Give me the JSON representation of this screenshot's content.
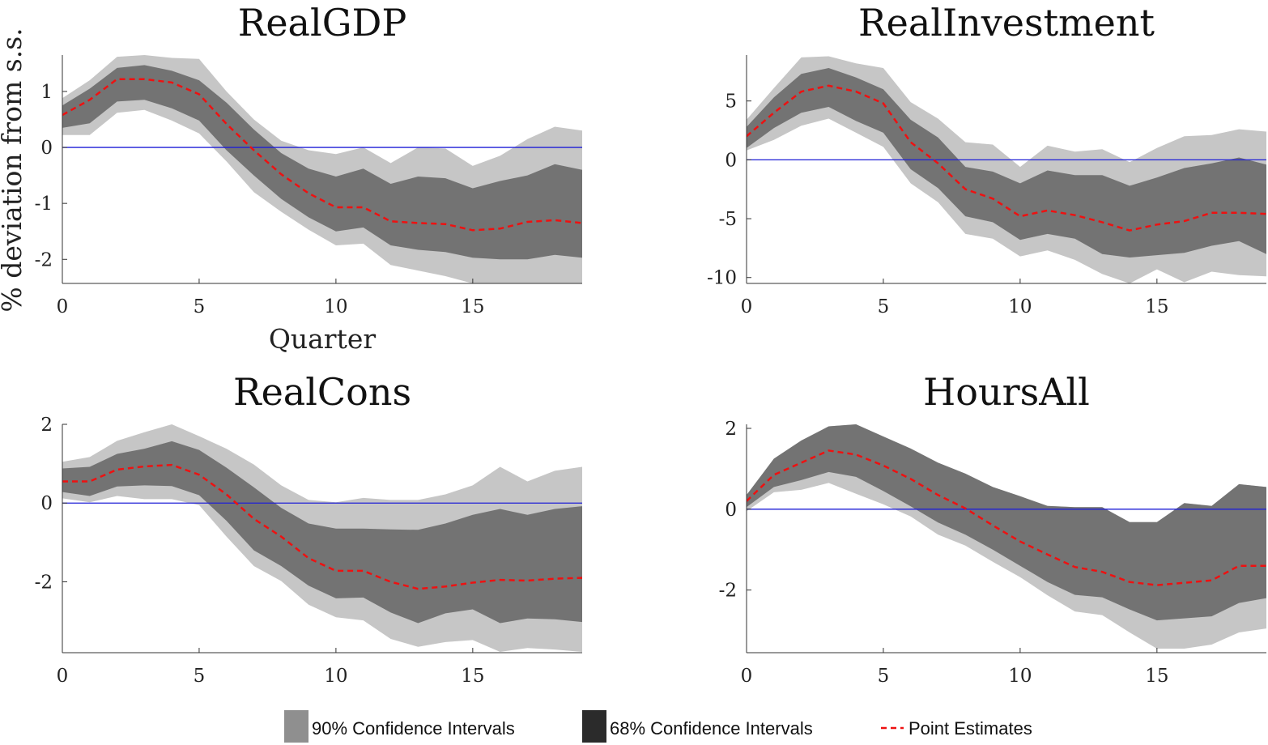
{
  "figure": {
    "ylabel": "% deviation from s.s.",
    "xlabel": "Quarter"
  },
  "colors": {
    "band90": "#c6c6c6",
    "band68": "#737373",
    "point": "#ee1111",
    "zero_line": "#1f1fd6",
    "legend90": "#8f8f8f",
    "legend68": "#2b2b2b"
  },
  "legend": {
    "placement": "bottom-center",
    "items": [
      {
        "label": "90% Confidence Intervals",
        "kind": "band90"
      },
      {
        "label": "68% Confidence Intervals",
        "kind": "band68"
      },
      {
        "label": "Point Estimates",
        "kind": "point"
      }
    ]
  },
  "chart_data": [
    {
      "type": "area",
      "title": "RealGDP",
      "xlabel": "Quarter",
      "ylabel": "% deviation from s.s.",
      "x": [
        0,
        1,
        2,
        3,
        4,
        5,
        6,
        7,
        8,
        9,
        10,
        11,
        12,
        13,
        14,
        15,
        16,
        17,
        18,
        19
      ],
      "xlim": [
        0,
        19
      ],
      "ylim": [
        -2.43,
        1.65
      ],
      "xticks": [
        0,
        5,
        10,
        15
      ],
      "yticks": [
        -2,
        -1,
        0,
        1
      ],
      "zero_line": 0,
      "series": [
        {
          "name": "Point Estimates",
          "values": [
            0.58,
            0.85,
            1.22,
            1.22,
            1.16,
            0.95,
            0.42,
            -0.05,
            -0.48,
            -0.82,
            -1.07,
            -1.07,
            -1.32,
            -1.35,
            -1.37,
            -1.48,
            -1.45,
            -1.33,
            -1.3,
            -1.35
          ]
        },
        {
          "name": "68% Confidence Intervals",
          "lower": [
            0.35,
            0.43,
            0.82,
            0.85,
            0.7,
            0.48,
            -0.05,
            -0.5,
            -0.92,
            -1.25,
            -1.5,
            -1.43,
            -1.75,
            -1.83,
            -1.87,
            -1.97,
            -2.0,
            -2.0,
            -1.92,
            -1.97
          ],
          "upper": [
            0.75,
            1.05,
            1.42,
            1.47,
            1.37,
            1.2,
            0.8,
            0.32,
            -0.1,
            -0.38,
            -0.52,
            -0.38,
            -0.65,
            -0.52,
            -0.55,
            -0.73,
            -0.6,
            -0.5,
            -0.3,
            -0.4
          ]
        },
        {
          "name": "90% Confidence Intervals",
          "lower": [
            0.22,
            0.22,
            0.62,
            0.67,
            0.48,
            0.25,
            -0.25,
            -0.8,
            -1.15,
            -1.47,
            -1.75,
            -1.72,
            -2.1,
            -2.2,
            -2.3,
            -2.43,
            -2.43,
            -2.43,
            -2.43,
            -2.43
          ],
          "upper": [
            0.88,
            1.2,
            1.62,
            1.65,
            1.6,
            1.58,
            1.0,
            0.5,
            0.12,
            -0.05,
            -0.12,
            0.0,
            -0.28,
            0.0,
            -0.02,
            -0.33,
            -0.15,
            0.15,
            0.37,
            0.3
          ]
        }
      ]
    },
    {
      "type": "area",
      "title": "RealInvestment",
      "x": [
        0,
        1,
        2,
        3,
        4,
        5,
        6,
        7,
        8,
        9,
        10,
        11,
        12,
        13,
        14,
        15,
        16,
        17,
        18,
        19
      ],
      "xlim": [
        0,
        19
      ],
      "ylim": [
        -10.5,
        8.9
      ],
      "xticks": [
        0,
        5,
        10,
        15
      ],
      "yticks": [
        -10,
        -5,
        0,
        5
      ],
      "zero_line": 0,
      "series": [
        {
          "name": "Point Estimates",
          "values": [
            2.0,
            4.0,
            5.8,
            6.3,
            5.8,
            4.8,
            1.5,
            -0.3,
            -2.5,
            -3.3,
            -4.8,
            -4.3,
            -4.7,
            -5.3,
            -6.0,
            -5.5,
            -5.2,
            -4.5,
            -4.5,
            -4.6
          ]
        },
        {
          "name": "68% Confidence Intervals",
          "lower": [
            1.0,
            2.7,
            4.0,
            4.5,
            3.3,
            2.3,
            -0.8,
            -2.4,
            -4.8,
            -5.3,
            -6.8,
            -6.3,
            -6.7,
            -8.0,
            -8.3,
            -8.1,
            -7.9,
            -7.3,
            -6.9,
            -8.0
          ],
          "upper": [
            2.8,
            5.3,
            7.3,
            7.8,
            7.0,
            6.0,
            3.4,
            1.9,
            -0.6,
            -1.0,
            -2.0,
            -0.9,
            -1.3,
            -1.3,
            -2.2,
            -1.5,
            -0.7,
            -0.3,
            0.2,
            -0.4
          ]
        },
        {
          "name": "90% Confidence Intervals",
          "lower": [
            0.8,
            1.7,
            2.9,
            3.5,
            2.3,
            1.1,
            -2.0,
            -3.6,
            -6.3,
            -6.7,
            -8.2,
            -7.7,
            -8.5,
            -9.7,
            -10.5,
            -9.3,
            -10.4,
            -9.5,
            -9.8,
            -9.9
          ],
          "upper": [
            3.4,
            6.1,
            8.7,
            8.8,
            8.2,
            7.8,
            4.9,
            3.5,
            1.5,
            1.3,
            -0.6,
            1.2,
            0.7,
            0.9,
            -0.2,
            1.0,
            2.0,
            2.1,
            2.6,
            2.4
          ]
        }
      ]
    },
    {
      "type": "area",
      "title": "RealCons",
      "x": [
        0,
        1,
        2,
        3,
        4,
        5,
        6,
        7,
        8,
        9,
        10,
        11,
        12,
        13,
        14,
        15,
        16,
        17,
        18,
        19
      ],
      "xlim": [
        0,
        19
      ],
      "ylim": [
        -3.8,
        2.0
      ],
      "xticks": [
        0,
        5,
        10,
        15
      ],
      "yticks": [
        -2,
        0,
        2
      ],
      "zero_line": 0,
      "series": [
        {
          "name": "Point Estimates",
          "values": [
            0.55,
            0.55,
            0.85,
            0.93,
            0.97,
            0.72,
            0.22,
            -0.4,
            -0.85,
            -1.4,
            -1.72,
            -1.72,
            -2.0,
            -2.18,
            -2.12,
            -2.02,
            -1.95,
            -1.97,
            -1.92,
            -1.9
          ]
        },
        {
          "name": "68% Confidence Intervals",
          "lower": [
            0.28,
            0.18,
            0.42,
            0.45,
            0.43,
            0.2,
            -0.45,
            -1.2,
            -1.6,
            -2.1,
            -2.42,
            -2.4,
            -2.78,
            -3.05,
            -2.8,
            -2.7,
            -3.05,
            -2.93,
            -2.95,
            -3.02
          ],
          "upper": [
            0.88,
            0.92,
            1.25,
            1.38,
            1.57,
            1.35,
            0.9,
            0.4,
            -0.12,
            -0.52,
            -0.65,
            -0.65,
            -0.67,
            -0.68,
            -0.52,
            -0.3,
            -0.15,
            -0.3,
            -0.15,
            -0.08
          ]
        },
        {
          "name": "90% Confidence Intervals",
          "lower": [
            0.12,
            0.02,
            0.18,
            0.1,
            0.1,
            -0.05,
            -0.85,
            -1.6,
            -1.98,
            -2.58,
            -2.9,
            -2.98,
            -3.45,
            -3.65,
            -3.53,
            -3.48,
            -3.78,
            -3.68,
            -3.72,
            -3.78
          ],
          "upper": [
            1.05,
            1.17,
            1.58,
            1.8,
            2.0,
            1.7,
            1.38,
            0.98,
            0.45,
            0.08,
            0.02,
            0.13,
            0.08,
            0.08,
            0.22,
            0.45,
            0.92,
            0.55,
            0.82,
            0.92
          ]
        }
      ]
    },
    {
      "type": "area",
      "title": "HoursAll",
      "x": [
        0,
        1,
        2,
        3,
        4,
        5,
        6,
        7,
        8,
        9,
        10,
        11,
        12,
        13,
        14,
        15,
        16,
        17,
        18,
        19
      ],
      "xlim": [
        0,
        19
      ],
      "ylim": [
        -3.55,
        2.1
      ],
      "xticks": [
        0,
        5,
        10,
        15
      ],
      "yticks": [
        -2,
        0,
        2
      ],
      "zero_line": 0,
      "series": [
        {
          "name": "Point Estimates",
          "values": [
            0.2,
            0.85,
            1.15,
            1.45,
            1.35,
            1.08,
            0.75,
            0.35,
            0.02,
            -0.4,
            -0.8,
            -1.12,
            -1.43,
            -1.55,
            -1.8,
            -1.88,
            -1.82,
            -1.76,
            -1.4,
            -1.4
          ]
        },
        {
          "name": "68% Confidence Intervals",
          "lower": [
            0.05,
            0.55,
            0.72,
            0.92,
            0.8,
            0.45,
            0.07,
            -0.33,
            -0.63,
            -1.0,
            -1.4,
            -1.8,
            -2.12,
            -2.18,
            -2.48,
            -2.75,
            -2.7,
            -2.65,
            -2.32,
            -2.2
          ]
        },
        {
          "name": "90% Confidence Intervals",
          "lower": [
            -0.05,
            0.42,
            0.48,
            0.65,
            0.38,
            0.12,
            -0.18,
            -0.63,
            -0.9,
            -1.3,
            -1.68,
            -2.13,
            -2.53,
            -2.62,
            -3.05,
            -3.45,
            -3.45,
            -3.35,
            -3.05,
            -2.95
          ],
          "upper": [
            0.35,
            1.25,
            1.7,
            2.05,
            2.1,
            1.8,
            1.5,
            1.15,
            0.88,
            0.55,
            0.32,
            0.08,
            0.05,
            0.05,
            -0.32,
            -0.32,
            0.15,
            0.08,
            0.62,
            0.55
          ]
        }
      ]
    }
  ]
}
